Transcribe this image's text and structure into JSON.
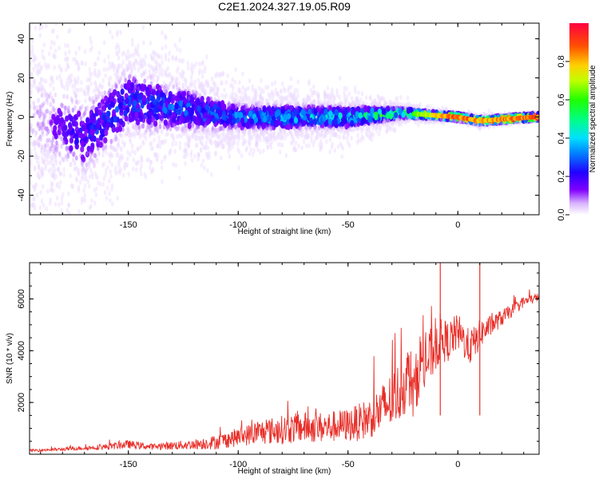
{
  "chart_data": [
    {
      "type": "heatmap",
      "title": "C2E1.2024.327.19.05.R09",
      "xlabel": "Height of straight line (km)",
      "ylabel": "Frequency (Hz)",
      "xlim": [
        -195,
        37
      ],
      "ylim": [
        -50,
        48
      ],
      "xticks": [
        -150,
        -100,
        -50,
        0
      ],
      "yticks": [
        -40,
        -20,
        0,
        20,
        40
      ],
      "colorbar": {
        "label": "Normalized spectral amplitude",
        "range": [
          0,
          1
        ],
        "ticks": [
          "0.0",
          "0.2",
          "0.4",
          "0.6",
          "0.8"
        ],
        "colormap": "rainbow (white/violet → blue → cyan → green → yellow → red)"
      },
      "ridge_description": [
        {
          "x": -195,
          "freq_center": 0,
          "spread": 50,
          "amplitude": 0.05
        },
        {
          "x": -170,
          "freq_center": -10,
          "spread": 40,
          "amplitude": 0.22
        },
        {
          "x": -150,
          "freq_center": 8,
          "spread": 35,
          "amplitude": 0.25
        },
        {
          "x": -100,
          "freq_center": 0,
          "spread": 15,
          "amplitude": 0.3
        },
        {
          "x": -50,
          "freq_center": 0,
          "spread": 12,
          "amplitude": 0.4
        },
        {
          "x": -25,
          "freq_center": 2,
          "spread": 5,
          "amplitude": 0.6
        },
        {
          "x": 0,
          "freq_center": 0,
          "spread": 2,
          "amplitude": 0.95
        },
        {
          "x": 10,
          "freq_center": -2,
          "spread": 3,
          "amplitude": 0.85
        },
        {
          "x": 35,
          "freq_center": 0,
          "spread": 2,
          "amplitude": 0.95
        }
      ]
    },
    {
      "type": "line",
      "xlabel": "Height of straight line (km)",
      "ylabel": "SNR (10 * v/v)",
      "xlim": [
        -195,
        37
      ],
      "ylim": [
        0,
        7400
      ],
      "xticks": [
        -150,
        -100,
        -50,
        0
      ],
      "yticks": [
        2000,
        4000,
        6000
      ],
      "color": "#e8302a",
      "series": [
        {
          "x": [
            -195,
            -180,
            -170,
            -160,
            -150,
            -140,
            -130,
            -120,
            -110,
            -100,
            -90,
            -80,
            -70,
            -60,
            -50,
            -45,
            -40,
            -35,
            -30,
            -25,
            -22,
            -20,
            -17,
            -15,
            -12,
            -10,
            -8,
            -5,
            0,
            5,
            8,
            10,
            15,
            20,
            25,
            30,
            37
          ],
          "values": [
            150,
            200,
            250,
            300,
            400,
            300,
            350,
            400,
            500,
            700,
            900,
            1000,
            1100,
            1100,
            1200,
            1300,
            1500,
            1800,
            2200,
            2700,
            3200,
            2400,
            3800,
            3500,
            4000,
            4300,
            4600,
            4400,
            4800,
            4200,
            4400,
            4700,
            5000,
            5300,
            5600,
            5900,
            6100
          ],
          "noise_amplitude": [
            60,
            80,
            100,
            150,
            200,
            150,
            200,
            250,
            350,
            450,
            600,
            700,
            750,
            750,
            800,
            900,
            1000,
            1200,
            1400,
            1500,
            1600,
            1500,
            1400,
            1400,
            1300,
            1300,
            1200,
            1000,
            900,
            900,
            800,
            700,
            500,
            400,
            300,
            250,
            200
          ]
        }
      ],
      "spikes": [
        {
          "x": -8,
          "y": 7400
        },
        {
          "x": 10,
          "y": 7400
        }
      ]
    }
  ]
}
